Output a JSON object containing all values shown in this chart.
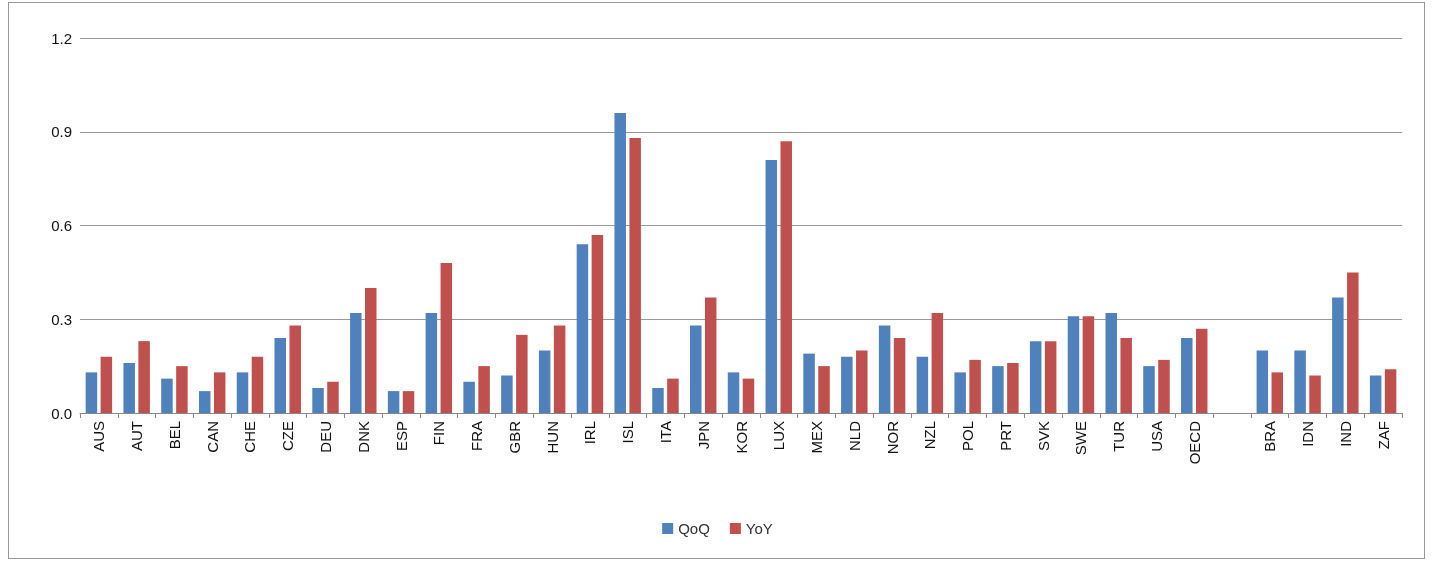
{
  "chart_data": {
    "type": "bar",
    "categories": [
      "AUS",
      "AUT",
      "BEL",
      "CAN",
      "CHE",
      "CZE",
      "DEU",
      "DNK",
      "ESP",
      "FIN",
      "FRA",
      "GBR",
      "HUN",
      "IRL",
      "ISL",
      "ITA",
      "JPN",
      "KOR",
      "LUX",
      "MEX",
      "NLD",
      "NOR",
      "NZL",
      "POL",
      "PRT",
      "SVK",
      "SWE",
      "TUR",
      "USA",
      "OECD",
      null,
      "BRA",
      "IDN",
      "IND",
      "ZAF"
    ],
    "series": [
      {
        "name": "QoQ",
        "color": "#4f81bd",
        "values": [
          0.13,
          0.16,
          0.11,
          0.07,
          0.13,
          0.24,
          0.08,
          0.32,
          0.07,
          0.32,
          0.1,
          0.12,
          0.2,
          0.54,
          0.96,
          0.08,
          0.28,
          0.13,
          0.81,
          0.19,
          0.18,
          0.28,
          0.18,
          0.13,
          0.15,
          0.23,
          0.31,
          0.32,
          0.15,
          0.24,
          null,
          0.2,
          0.2,
          0.37,
          0.12
        ]
      },
      {
        "name": "YoY",
        "color": "#c0504d",
        "values": [
          0.18,
          0.23,
          0.15,
          0.13,
          0.18,
          0.28,
          0.1,
          0.4,
          0.07,
          0.48,
          0.15,
          0.25,
          0.28,
          0.57,
          0.88,
          0.11,
          0.37,
          0.11,
          0.87,
          0.15,
          0.2,
          0.24,
          0.32,
          0.17,
          0.16,
          0.23,
          0.31,
          0.24,
          0.17,
          0.27,
          null,
          0.13,
          0.12,
          0.45,
          0.14
        ]
      }
    ],
    "ylim": [
      0,
      1.2
    ],
    "yticks": [
      {
        "value": 0,
        "label": "0.0"
      },
      0.3,
      0.6,
      0.9,
      1.2
    ],
    "grid": "y",
    "legend": "bottom"
  }
}
